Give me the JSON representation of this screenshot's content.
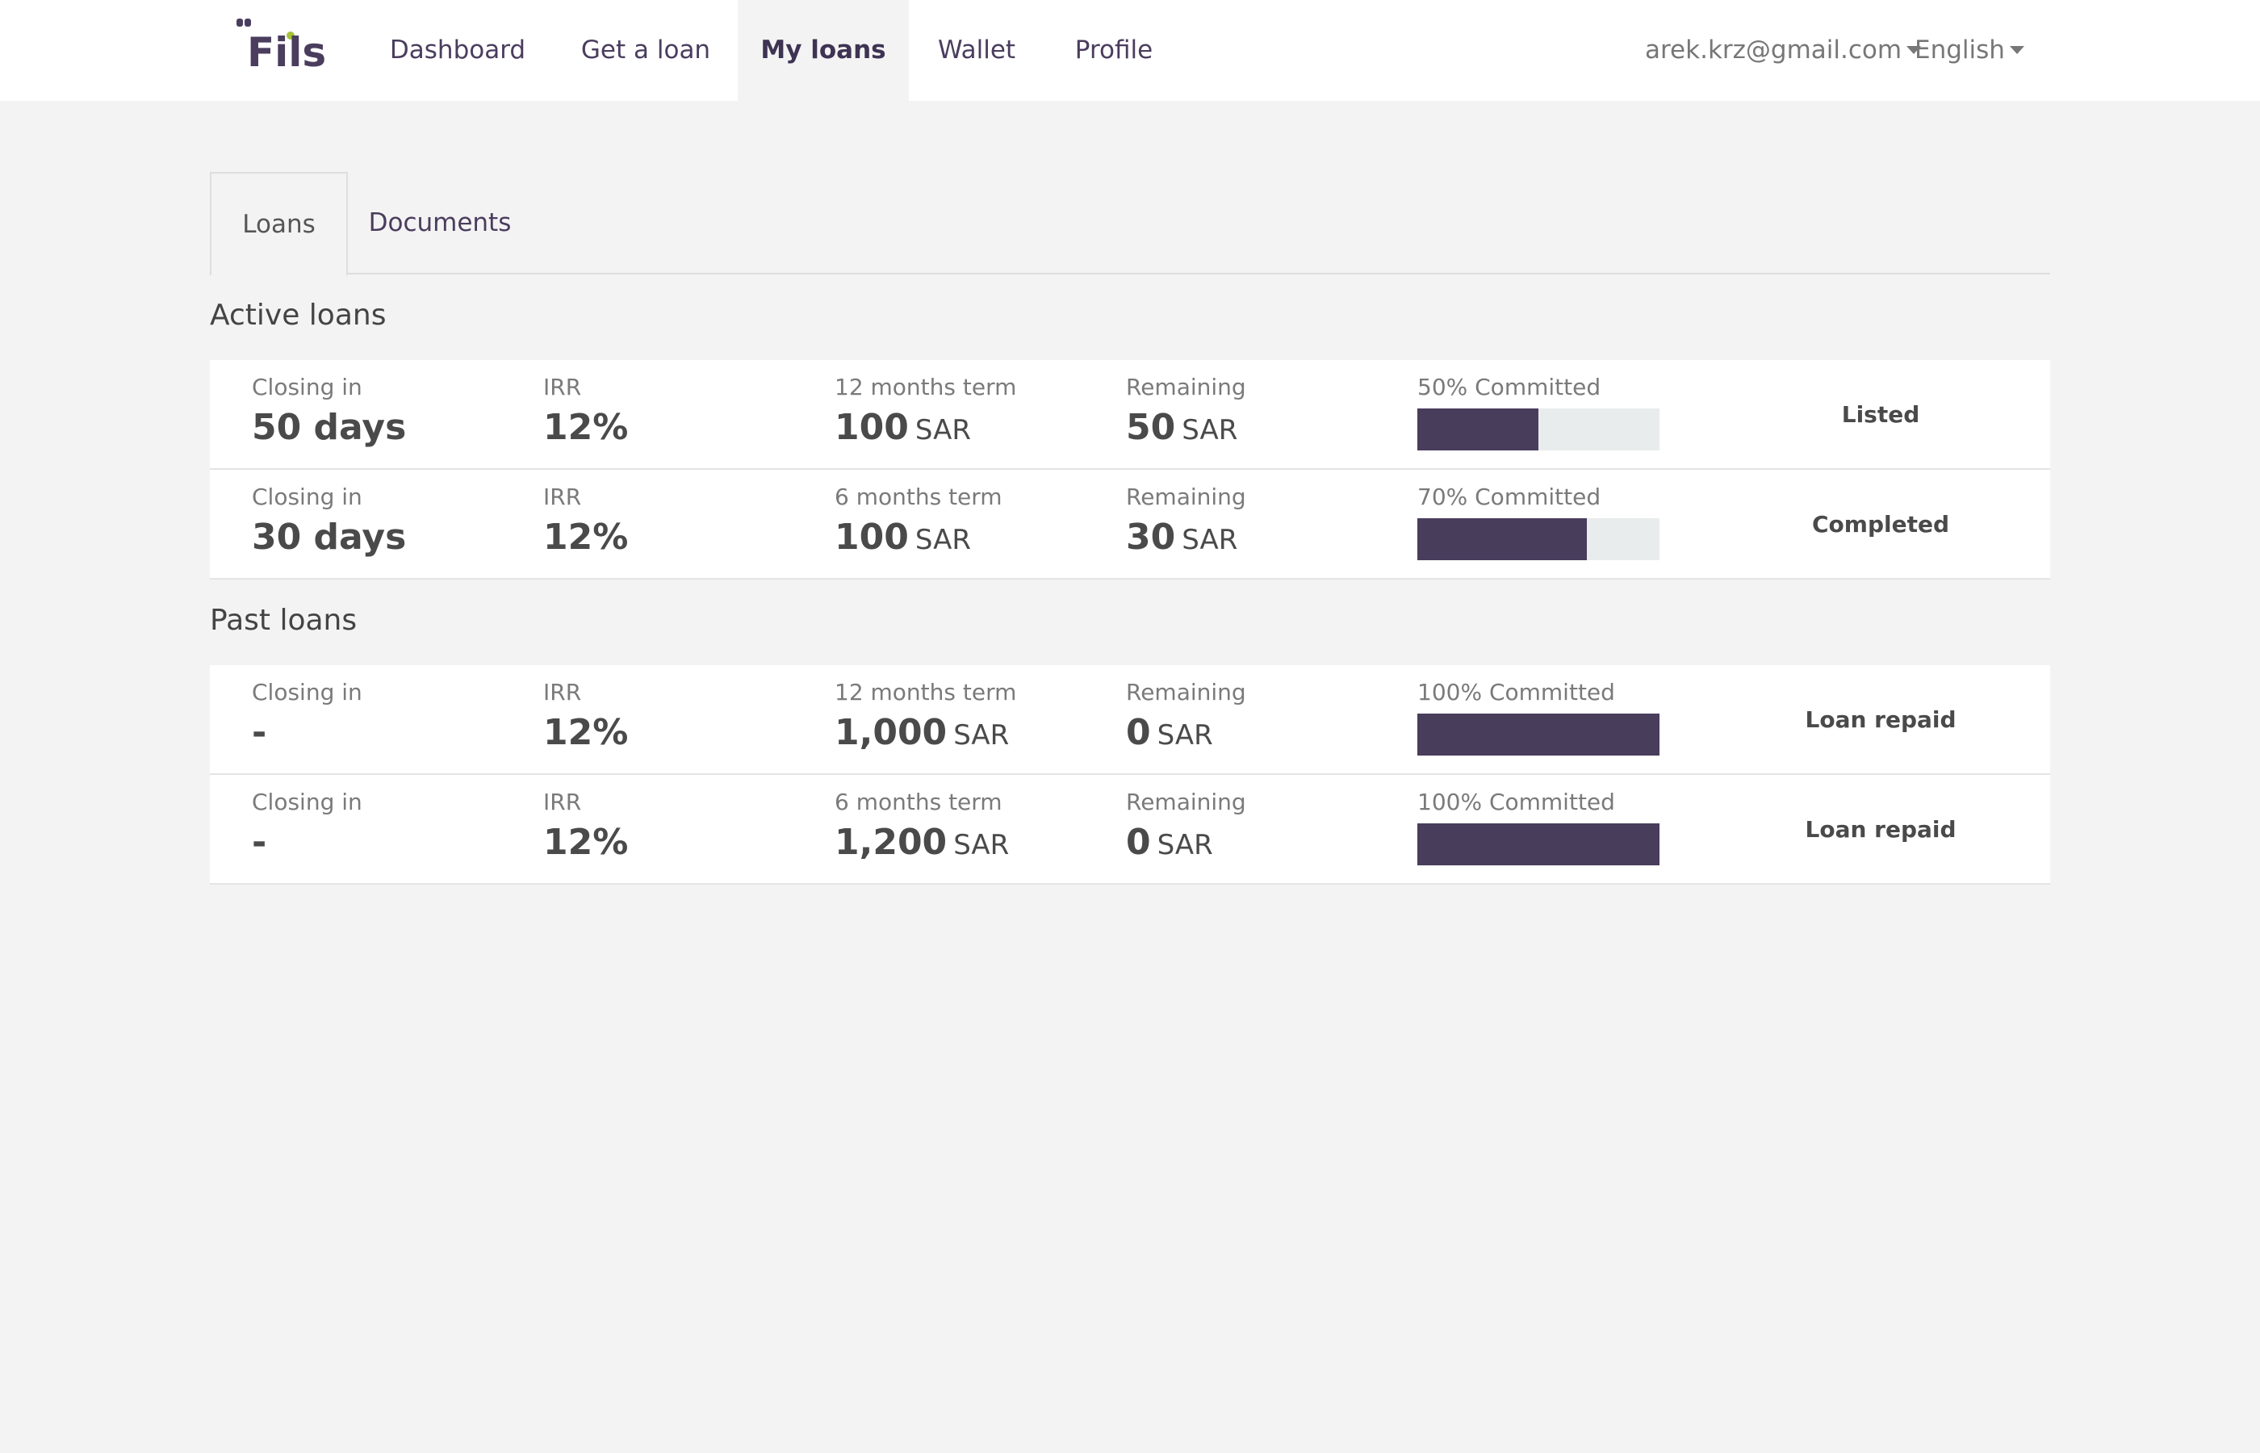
{
  "brand": {
    "name": "Fils",
    "color": "#4a3d5e",
    "accent": "#a6c23a"
  },
  "nav": {
    "items": [
      {
        "label": "Dashboard"
      },
      {
        "label": "Get a loan"
      },
      {
        "label": "My loans"
      },
      {
        "label": "Wallet"
      },
      {
        "label": "Profile"
      }
    ],
    "active": "My loans",
    "user_email": "arek.krz@gmail.com",
    "language": "English"
  },
  "tabs": {
    "items": [
      {
        "label": "Loans"
      },
      {
        "label": "Documents"
      }
    ],
    "active": "Loans"
  },
  "labels": {
    "closing": "Closing in",
    "irr": "IRR",
    "remaining": "Remaining",
    "currency": "SAR",
    "committed_suffix": "Committed"
  },
  "active_loans": {
    "title": "Active loans",
    "rows": [
      {
        "closing": "50 days",
        "irr": "12%",
        "term_label": "12 months term",
        "amount": "100",
        "remaining": "50",
        "committed_label": "50% Committed",
        "committed_pct": 50,
        "status": "Listed"
      },
      {
        "closing": "30 days",
        "irr": "12%",
        "term_label": "6 months term",
        "amount": "100",
        "remaining": "30",
        "committed_label": "70% Committed",
        "committed_pct": 70,
        "status": "Completed"
      }
    ]
  },
  "past_loans": {
    "title": "Past loans",
    "rows": [
      {
        "closing": "-",
        "irr": "12%",
        "term_label": "12 months term",
        "amount": "1,000",
        "remaining": "0",
        "committed_label": "100% Committed",
        "committed_pct": 100,
        "status": "Loan repaid"
      },
      {
        "closing": "-",
        "irr": "12%",
        "term_label": "6 months term",
        "amount": "1,200",
        "remaining": "0",
        "committed_label": "100% Committed",
        "committed_pct": 100,
        "status": "Loan repaid"
      }
    ]
  }
}
